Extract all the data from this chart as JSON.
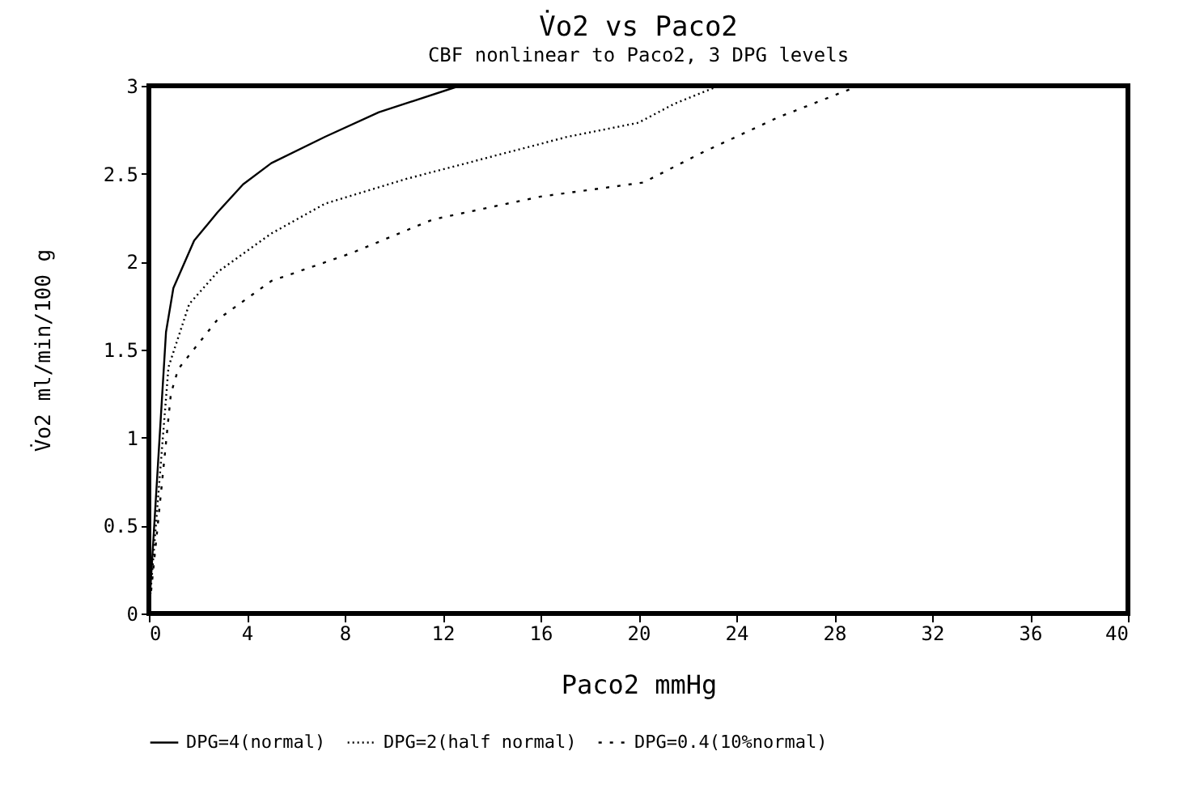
{
  "chart_data": {
    "type": "line",
    "title": "V̇o2 vs Paco2",
    "subtitle": "CBF nonlinear to Paco2, 3 DPG levels",
    "xlabel": "Paco2 mmHg",
    "ylabel": "V̇o2 ml/min/100 g",
    "xlim": [
      0,
      40
    ],
    "xticks": [
      0,
      4,
      8,
      12,
      16,
      20,
      24,
      28,
      32,
      36,
      40
    ],
    "ylim": [
      0,
      3
    ],
    "yticks": [
      0,
      0.5,
      1,
      1.5,
      2,
      2.5,
      3
    ],
    "grid": false,
    "legend": "bottom",
    "marker": "none",
    "series": [
      {
        "name": "DPG=4(normal)",
        "color": "#000000",
        "line_style": "solid",
        "x": [
          0,
          0.7,
          1.0,
          1.85,
          2.8,
          3.85,
          5.0,
          7.2,
          9.4,
          12.7
        ],
        "values": [
          0,
          1.6,
          1.85,
          2.12,
          2.28,
          2.44,
          2.56,
          2.71,
          2.85,
          3.0
        ]
      },
      {
        "name": "DPG=2(half normal)",
        "color": "#000000",
        "line_style": "dotted",
        "x": [
          0,
          0.8,
          1.65,
          2.8,
          5.0,
          7.2,
          10.5,
          13.8,
          17.1,
          20,
          21.5,
          23.3
        ],
        "values": [
          0,
          1.4,
          1.76,
          1.94,
          2.16,
          2.33,
          2.47,
          2.59,
          2.71,
          2.79,
          2.9,
          3.0
        ]
      },
      {
        "name": "DPG=0.4(10%normal)",
        "color": "#000000",
        "line_style": "dashed",
        "x": [
          0,
          0.9,
          1.2,
          2.8,
          5.0,
          8.3,
          11.6,
          16,
          20.2,
          22.6,
          25.7,
          29
        ],
        "values": [
          0,
          1.25,
          1.39,
          1.67,
          1.89,
          2.05,
          2.24,
          2.37,
          2.45,
          2.62,
          2.82,
          3.0
        ]
      }
    ]
  }
}
